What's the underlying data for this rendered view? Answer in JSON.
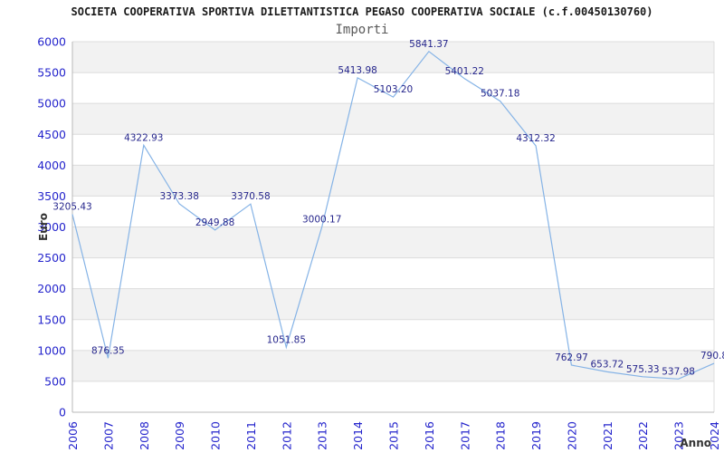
{
  "header": {
    "title": "SOCIETA COOPERATIVA SPORTIVA DILETTANTISTICA PEGASO COOPERATIVA SOCIALE (c.f.00450130760)",
    "subtitle": "Importi"
  },
  "chart_data": {
    "type": "line",
    "title": "Importi",
    "xlabel": "Anno",
    "ylabel": "Euro",
    "x": [
      2006,
      2007,
      2008,
      2009,
      2010,
      2011,
      2012,
      2013,
      2014,
      2015,
      2016,
      2017,
      2018,
      2019,
      2020,
      2021,
      2022,
      2023,
      2024
    ],
    "values": [
      3205.43,
      876.35,
      4322.93,
      3373.38,
      2949.88,
      3370.58,
      1051.85,
      3000.17,
      5413.98,
      5103.2,
      5841.37,
      5401.22,
      5037.18,
      4312.32,
      762.97,
      653.72,
      575.33,
      537.98,
      790.8
    ],
    "point_labels": [
      "3205.43",
      "876.35",
      "4322.93",
      "3373.38",
      "2949.88",
      "3370.58",
      "1051.85",
      "3000.17",
      "5413.98",
      "5103.20",
      "5841.37",
      "5401.22",
      "5037.18",
      "4312.32",
      "762.97",
      "653.72",
      "575.33",
      "537.98",
      "790.8"
    ],
    "ylim": [
      0,
      6000
    ],
    "ytick_step": 500,
    "grid": true,
    "legend": "none",
    "banded_background": true,
    "colors": {
      "line": "#85b3e6",
      "tick_label": "#2424cc",
      "data_label": "#26268c",
      "band": "#f2f2f2",
      "gridline": "#dcdcdc",
      "axis_line": "#b8b8b8",
      "axis_title": "#333333"
    }
  }
}
